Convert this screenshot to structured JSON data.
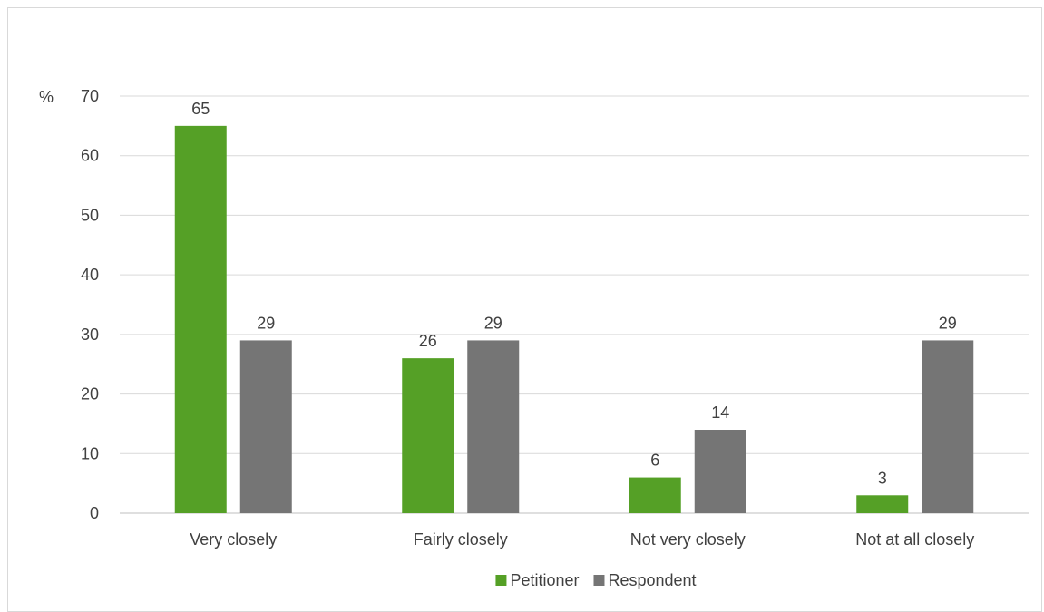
{
  "chart_data": {
    "type": "bar",
    "ylabel": "%",
    "ylim": [
      0,
      70
    ],
    "yticks": [
      0,
      10,
      20,
      30,
      40,
      50,
      60,
      70
    ],
    "categories": [
      "Very closely",
      "Fairly closely",
      "Not very closely",
      "Not at all closely"
    ],
    "series": [
      {
        "name": "Petitioner",
        "values": [
          65,
          26,
          6,
          3
        ],
        "color": "#55a026"
      },
      {
        "name": "Respondent",
        "values": [
          29,
          29,
          14,
          29
        ],
        "color": "#757575"
      }
    ],
    "grid": true,
    "legend": "bottom-center"
  }
}
